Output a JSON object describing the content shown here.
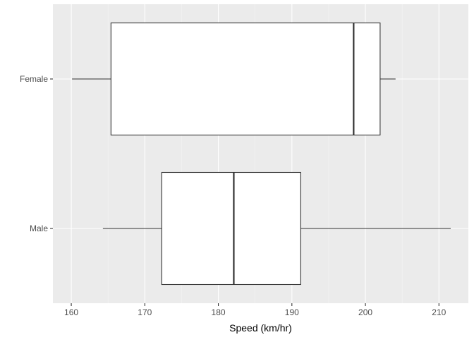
{
  "chart_data": {
    "type": "boxplot",
    "orientation": "horizontal",
    "title": "",
    "xlabel": "Speed (km/hr)",
    "ylabel": "",
    "xlim": [
      157.5,
      214.0
    ],
    "x_ticks": [
      160,
      170,
      180,
      190,
      200,
      210
    ],
    "x_tick_labels": [
      "160",
      "170",
      "180",
      "190",
      "200",
      "210"
    ],
    "categories": [
      "Female",
      "Male"
    ],
    "boxes": [
      {
        "category": "Female",
        "whisker_low": 160.1,
        "q1": 165.4,
        "median": 198.4,
        "q3": 202.0,
        "whisker_high": 204.1
      },
      {
        "category": "Male",
        "whisker_low": 164.3,
        "q1": 172.3,
        "median": 182.1,
        "q3": 191.2,
        "whisker_high": 211.6
      }
    ],
    "grid": true,
    "legend": "none",
    "colors": {
      "panel_background": "#EBEBEB",
      "grid_major": "#FFFFFF",
      "grid_minor": "#F5F5F5",
      "box_fill": "#FFFFFF",
      "box_stroke": "#333333",
      "tick_label": "#4D4D4D",
      "axis_title": "#000000"
    }
  }
}
